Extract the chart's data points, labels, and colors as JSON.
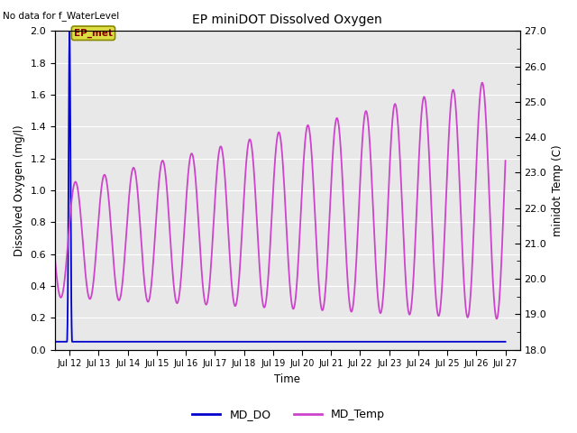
{
  "title": "EP miniDOT Dissolved Oxygen",
  "top_left_text": "No data for f_WaterLevel",
  "annotation_text": "EP_met",
  "xlabel": "Time",
  "ylabel_left": "Dissolved Oxygen (mg/l)",
  "ylabel_right": "minidot Temp (C)",
  "ylim_left": [
    0.0,
    2.0
  ],
  "ylim_right": [
    18.0,
    27.0
  ],
  "x_tick_labels": [
    "Jul 12",
    "Jul 13",
    "Jul 14",
    "Jul 15",
    "Jul 16",
    "Jul 17",
    "Jul 18",
    "Jul 19",
    "Jul 20",
    "Jul 21",
    "Jul 22",
    "Jul 23",
    "Jul 24",
    "Jul 25",
    "Jul 26",
    "Jul 27"
  ],
  "bg_color": "#e8e8e8",
  "md_do_color": "#0000cc",
  "md_temp_color": "#cc44cc",
  "annotation_bg": "#dddd44",
  "annotation_text_color": "#880000",
  "annotation_border_color": "#888800",
  "right_tick_color": "#555555",
  "figsize": [
    6.4,
    4.8
  ],
  "dpi": 100
}
